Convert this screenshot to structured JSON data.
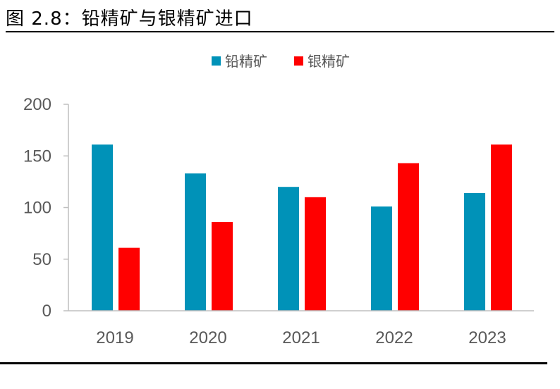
{
  "header": {
    "title": "图 2.8：铅精矿与银精矿进口"
  },
  "colors": {
    "lead": "#0092B8",
    "silver": "#FF0000",
    "axis": "#BFBFBF",
    "text": "#595959"
  },
  "chart_data": {
    "type": "bar",
    "categories": [
      "2019",
      "2020",
      "2021",
      "2022",
      "2023"
    ],
    "series": [
      {
        "name": "铅精矿",
        "values": [
          161,
          133,
          120,
          101,
          114
        ]
      },
      {
        "name": "银精矿",
        "values": [
          61,
          86,
          110,
          143,
          161
        ]
      }
    ],
    "yticks": [
      "0",
      "50",
      "100",
      "150",
      "200"
    ],
    "ylim": [
      0,
      200
    ],
    "legend": "top-center",
    "grid": false
  }
}
